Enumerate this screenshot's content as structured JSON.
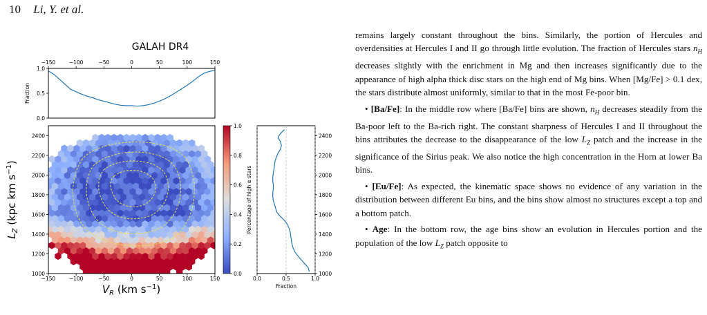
{
  "header": {
    "page_number": "10",
    "running_head": "Li, Y. et al."
  },
  "figure": {
    "title": "GALAH DR4",
    "top_panel": {
      "ylabel": "Fraction",
      "x_ticks": [
        "−150",
        "−100",
        "−50",
        "0",
        "50",
        "100",
        "150"
      ],
      "y_ticks": [
        "0.0",
        "0.5",
        "1.0"
      ]
    },
    "main_panel": {
      "xlabel": "V_R (km s^-1)",
      "ylabel": "L_Z (kpc km s^-1)",
      "x_ticks": [
        "−150",
        "−100",
        "−50",
        "0",
        "50",
        "100",
        "150"
      ],
      "y_ticks": [
        "1000",
        "1200",
        "1400",
        "1600",
        "1800",
        "2000",
        "2200",
        "2400"
      ]
    },
    "colorbar": {
      "label": "Percentage of high α stars",
      "ticks": [
        "0.0",
        "0.2",
        "0.4",
        "0.6",
        "0.8",
        "1.0"
      ],
      "colormap": [
        "#3b4cc0",
        "#8db0fe",
        "#dddddd",
        "#f49a7b",
        "#b40426"
      ]
    },
    "side_panel": {
      "xlabel": "Fraction",
      "x_ticks": [
        "0.0",
        "0.5",
        "1.0"
      ],
      "y_ticks": [
        "1000",
        "1200",
        "1400",
        "1600",
        "1800",
        "2000",
        "2200",
        "2400"
      ]
    },
    "line_color": "#1f77b4",
    "contour_color": "#e8e04a"
  },
  "chart_data": [
    {
      "type": "line",
      "title": "GALAH DR4",
      "xlabel": "",
      "ylabel": "Fraction",
      "xlim": [
        -150,
        150
      ],
      "ylim": [
        0,
        1
      ],
      "x": [
        -150,
        -140,
        -130,
        -120,
        -110,
        -100,
        -90,
        -80,
        -70,
        -60,
        -50,
        -40,
        -30,
        -20,
        -10,
        0,
        10,
        20,
        30,
        40,
        50,
        60,
        70,
        80,
        90,
        100,
        110,
        120,
        130,
        140,
        150
      ],
      "values": [
        0.95,
        0.88,
        0.78,
        0.68,
        0.58,
        0.53,
        0.48,
        0.44,
        0.41,
        0.37,
        0.34,
        0.31,
        0.28,
        0.26,
        0.25,
        0.25,
        0.24,
        0.25,
        0.27,
        0.3,
        0.34,
        0.39,
        0.45,
        0.52,
        0.59,
        0.66,
        0.74,
        0.83,
        0.9,
        0.94,
        0.96
      ]
    },
    {
      "type": "line",
      "xlabel": "Fraction",
      "ylabel": "",
      "xlim": [
        0,
        1
      ],
      "ylim": [
        1000,
        2500
      ],
      "y": [
        2460,
        2420,
        2380,
        2340,
        2300,
        2260,
        2220,
        2180,
        2140,
        2100,
        2060,
        2020,
        1980,
        1940,
        1900,
        1860,
        1820,
        1780,
        1740,
        1700,
        1660,
        1620,
        1580,
        1540,
        1500,
        1460,
        1420,
        1380,
        1340,
        1300,
        1260,
        1220,
        1180,
        1140,
        1100,
        1060,
        1020
      ],
      "values": [
        0.47,
        0.4,
        0.36,
        0.4,
        0.42,
        0.4,
        0.36,
        0.33,
        0.31,
        0.3,
        0.29,
        0.28,
        0.27,
        0.27,
        0.28,
        0.28,
        0.27,
        0.27,
        0.28,
        0.3,
        0.32,
        0.34,
        0.4,
        0.47,
        0.52,
        0.55,
        0.57,
        0.58,
        0.59,
        0.6,
        0.62,
        0.65,
        0.7,
        0.76,
        0.82,
        0.88,
        0.9
      ]
    }
  ],
  "text": {
    "para1": "remains largely constant throughout the bins. Similarly, the portion of Hercules and overdensities at Hercules I and II go through little evolution. The fraction of Hercules stars n_H decreases slightly with the enrichment in Mg and then increases significantly due to the appearance of high alpha thick disc stars on the high end of Mg bins. When [Mg/Fe] > 0.1 dex, the stars distribute almost uniformly, similar to that in the most Fe-poor bin.",
    "para2_head": "[Ba/Fe]",
    "para2_a": ": In the middle row where [Ba/Fe] bins are shown, ",
    "para2_var": "n_H",
    "para2_b": " decreases steadily from the Ba-poor left to the Ba-rich right. The constant sharpness of Hercules I and II throughout the bins attributes the decrease to the disappearance of the low ",
    "para2_lz": "L_Z",
    "para2_c": " patch and the increase in the significance of the Sirius peak. We also notice the high concentration in the Horn at lower Ba bins.",
    "para3_head": "[Eu/Fe]",
    "para3_a": ": As expected, the kinematic space shows no evidence of any variation in the distribution between different Eu bins, and the bins show almost no structures except a top and a bottom patch.",
    "para4_head": "Age",
    "para4_a": ": In the bottom row, the age bins show an evolution in Hercules portion and the population of the low ",
    "para4_lz": "L_Z",
    "para4_b": " patch opposite to"
  }
}
